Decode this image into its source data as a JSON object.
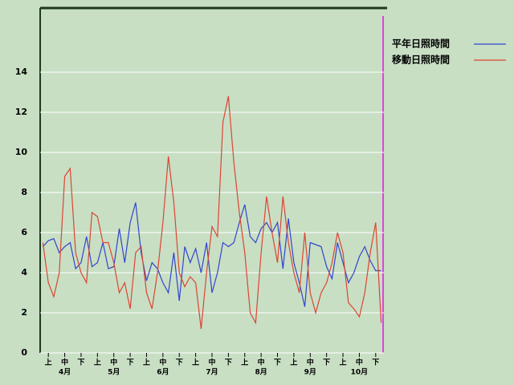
{
  "chart_data": {
    "type": "line",
    "categories": [
      null,
      "上",
      null,
      null,
      "中",
      null,
      null,
      "下",
      null,
      null,
      "上",
      null,
      null,
      "中",
      null,
      null,
      "下",
      null,
      null,
      "上",
      null,
      null,
      "中",
      null,
      null,
      "下",
      null,
      null,
      "上",
      null,
      null,
      "中",
      null,
      null,
      "下",
      null,
      null,
      "上",
      null,
      null,
      "中",
      null,
      null,
      "下",
      null,
      null,
      "上",
      null,
      null,
      "中",
      null,
      null,
      "下",
      null,
      null,
      "上",
      null,
      null,
      "中",
      null,
      null,
      "下",
      null
    ],
    "months": [
      "4月",
      "5月",
      "6月",
      "7月",
      "8月",
      "9月",
      "10月"
    ],
    "series": [
      {
        "name": "平年日照時間",
        "color": "#3344cc",
        "values": [
          5.3,
          5.6,
          5.7,
          5,
          5.3,
          5.5,
          4.2,
          4.5,
          5.8,
          4.3,
          4.5,
          5.5,
          4.2,
          4.3,
          6.2,
          4.5,
          6.5,
          7.5,
          5,
          3.6,
          4.5,
          4.2,
          3.5,
          3,
          5,
          2.6,
          5.3,
          4.5,
          5.2,
          4,
          5.5,
          3,
          4,
          5.5,
          5.3,
          5.5,
          6.5,
          7.4,
          5.8,
          5.5,
          6.2,
          6.5,
          6,
          6.5,
          4.2,
          6.7,
          4.5,
          3.5,
          2.3,
          5.5,
          5.4,
          5.3,
          4.3,
          3.7,
          5.5,
          4.5,
          3.5,
          4,
          4.8,
          5.3,
          4.6,
          4.1,
          4.1
        ]
      },
      {
        "name": "移動日照時間",
        "color": "#dd4433",
        "values": [
          5.5,
          3.5,
          2.8,
          4,
          8.8,
          9.2,
          5,
          4,
          3.5,
          7,
          6.8,
          5.5,
          5.5,
          4.5,
          3,
          3.5,
          2.2,
          5,
          5.3,
          3,
          2.2,
          4,
          6.5,
          9.8,
          7.5,
          4,
          3.3,
          3.8,
          3.5,
          1.2,
          4,
          6.3,
          5.8,
          11.5,
          12.8,
          9.5,
          7,
          5,
          2,
          1.5,
          5,
          7.8,
          6,
          4.5,
          7.8,
          5.5,
          4,
          3,
          6,
          3,
          2,
          3,
          3.5,
          4.5,
          6,
          5,
          2.5,
          2.2,
          1.8,
          3,
          5,
          6.5,
          1.5
        ]
      }
    ],
    "ylim": [
      0,
      17.2
    ],
    "yticks": [
      0,
      2,
      4,
      6,
      8,
      10,
      12,
      14
    ],
    "grid": true,
    "legend": "right"
  }
}
